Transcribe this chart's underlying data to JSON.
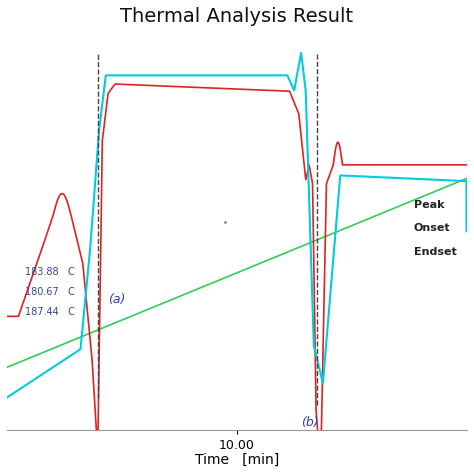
{
  "title": "Thermal Analysis Result",
  "xlabel": "Time   [min]",
  "xtick_label": "10.00",
  "background_color": "#ffffff",
  "red_color": "#dd2222",
  "cyan_color": "#00ccdd",
  "green_color": "#33cc55",
  "dashed_color": "#444444",
  "text_color_blue": "#334499",
  "text_color_dark": "#222222",
  "label_a": "(a)",
  "label_b": "(b)",
  "label_peak": "Peak",
  "label_onset": "Onset",
  "label_endset": "Endset"
}
